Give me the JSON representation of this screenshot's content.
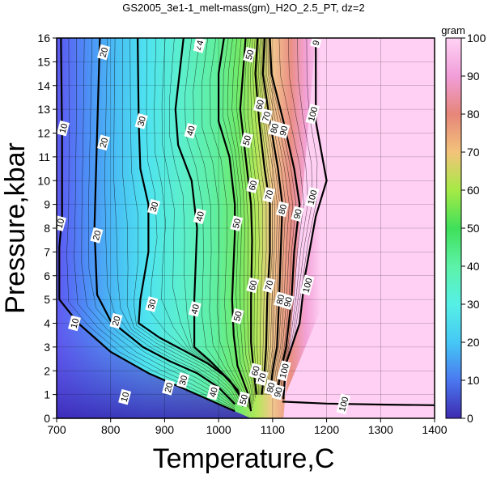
{
  "title": "GS2005_3e1-1_melt-mass(gm)_H2O_2.5_PT, dz=2",
  "chart_data": {
    "type": "heatmap",
    "title": "GS2005_3e1-1_melt-mass(gm)_H2O_2.5_PT, dz=2",
    "xlabel": "Temperature,C",
    "ylabel": "Pressure,kbar",
    "xlim": [
      700,
      1400
    ],
    "ylim": [
      0,
      16
    ],
    "xticks": [
      700,
      800,
      900,
      1000,
      1100,
      1200,
      1300,
      1400
    ],
    "yticks": [
      0,
      1,
      2,
      3,
      4,
      5,
      6,
      7,
      8,
      9,
      10,
      11,
      12,
      13,
      14,
      15,
      16
    ],
    "grid": true,
    "colorbar": {
      "label": "gram",
      "range": [
        0,
        100
      ],
      "ticks": [
        0,
        10,
        20,
        30,
        40,
        50,
        60,
        70,
        80,
        90,
        100
      ],
      "colors": [
        "#3d2bb0",
        "#4a78f0",
        "#45c8f5",
        "#56f0e6",
        "#5cf2a8",
        "#3fe05a",
        "#a6ea45",
        "#f3c37a",
        "#e6867a",
        "#f19ed9",
        "#ffd2f4"
      ]
    },
    "contours": [
      {
        "level": 10,
        "points": [
          [
            708,
            16
          ],
          [
            710,
            12
          ],
          [
            710,
            8.5
          ],
          [
            705,
            7.2
          ],
          [
            705,
            5.0
          ],
          [
            740,
            4.0
          ],
          [
            800,
            2.8
          ],
          [
            870,
            1.9
          ],
          [
            930,
            1.3
          ],
          [
            980,
            0.8
          ],
          [
            1030,
            0.3
          ]
        ]
      },
      {
        "level": 20,
        "points": [
          [
            780,
            16
          ],
          [
            775,
            12
          ],
          [
            770,
            8
          ],
          [
            775,
            5.2
          ],
          [
            800,
            4.1
          ],
          [
            860,
            3.0
          ],
          [
            910,
            2.4
          ],
          [
            960,
            1.9
          ],
          [
            1000,
            1.3
          ],
          [
            1030,
            0.6
          ]
        ]
      },
      {
        "level": 30,
        "points": [
          [
            850,
            16
          ],
          [
            852,
            12.5
          ],
          [
            855,
            10.5
          ],
          [
            870,
            9
          ],
          [
            870,
            7
          ],
          [
            855,
            5
          ],
          [
            852,
            4.0
          ],
          [
            890,
            3.4
          ],
          [
            940,
            2.8
          ],
          [
            980,
            2.3
          ],
          [
            1010,
            1.8
          ],
          [
            1035,
            1.2
          ],
          [
            1045,
            0.5
          ]
        ]
      },
      {
        "level": 40,
        "points": [
          [
            935,
            16
          ],
          [
            920,
            13
          ],
          [
            925,
            11.5
          ],
          [
            950,
            10
          ],
          [
            960,
            8
          ],
          [
            955,
            5
          ],
          [
            955,
            3.0
          ],
          [
            985,
            2.4
          ],
          [
            1020,
            1.6
          ],
          [
            1050,
            0.6
          ]
        ]
      },
      {
        "level": 50,
        "points": [
          [
            1010,
            16
          ],
          [
            1000,
            14.5
          ],
          [
            1000,
            12.5
          ],
          [
            1020,
            11
          ],
          [
            1030,
            9
          ],
          [
            1030,
            7.8
          ],
          [
            1025,
            5
          ],
          [
            1028,
            3.5
          ],
          [
            1035,
            2.2
          ],
          [
            1055,
            1.0
          ],
          [
            1060,
            0.3
          ]
        ]
      },
      {
        "level": 60,
        "points": [
          [
            1050,
            16
          ],
          [
            1045,
            14.5
          ],
          [
            1040,
            13
          ],
          [
            1050,
            11
          ],
          [
            1060,
            9
          ],
          [
            1062,
            7.5
          ],
          [
            1060,
            5
          ],
          [
            1060,
            3.2
          ],
          [
            1065,
            2.0
          ],
          [
            1070,
            1.0
          ]
        ]
      },
      {
        "level": 70,
        "points": [
          [
            1072,
            16
          ],
          [
            1068,
            14.5
          ],
          [
            1075,
            12.5
          ],
          [
            1085,
            10.5
          ],
          [
            1095,
            9
          ],
          [
            1095,
            7
          ],
          [
            1090,
            5
          ],
          [
            1088,
            3.0
          ],
          [
            1085,
            2.0
          ],
          [
            1080,
            1.0
          ]
        ]
      },
      {
        "level": 80,
        "points": [
          [
            1085,
            16
          ],
          [
            1082,
            14.5
          ],
          [
            1095,
            12.5
          ],
          [
            1110,
            10.5
          ],
          [
            1118,
            9
          ],
          [
            1115,
            7
          ],
          [
            1112,
            5
          ],
          [
            1108,
            3.0
          ],
          [
            1100,
            2.0
          ],
          [
            1095,
            1.0
          ]
        ]
      },
      {
        "level": 90,
        "points": [
          [
            1095,
            16
          ],
          [
            1098,
            14.5
          ],
          [
            1120,
            12.5
          ],
          [
            1140,
            10.5
          ],
          [
            1150,
            9
          ],
          [
            1140,
            7
          ],
          [
            1135,
            5
          ],
          [
            1125,
            3.0
          ],
          [
            1115,
            2.0
          ],
          [
            1108,
            1.0
          ]
        ]
      },
      {
        "level": 100,
        "points": [
          [
            1180,
            16
          ],
          [
            1180,
            14
          ],
          [
            1180,
            12.5
          ],
          [
            1200,
            10
          ],
          [
            1180,
            8.5
          ],
          [
            1160,
            6
          ],
          [
            1150,
            4.0
          ],
          [
            1125,
            2.3
          ],
          [
            1120,
            0.8
          ]
        ]
      },
      {
        "level": 100,
        "points": [
          [
            1118,
            0.7
          ],
          [
            1200,
            0.62
          ],
          [
            1300,
            0.58
          ],
          [
            1400,
            0.55
          ]
        ]
      }
    ],
    "contour_labels": [
      {
        "text": "10",
        "x": 712,
        "y": 12.2
      },
      {
        "text": "10",
        "x": 706,
        "y": 8.2
      },
      {
        "text": "10",
        "x": 733,
        "y": 4.0
      },
      {
        "text": "10",
        "x": 826,
        "y": 0.9
      },
      {
        "text": "20",
        "x": 787,
        "y": 15.4
      },
      {
        "text": "20",
        "x": 787,
        "y": 11.6
      },
      {
        "text": "20",
        "x": 774,
        "y": 7.7
      },
      {
        "text": "20",
        "x": 810,
        "y": 4.1
      },
      {
        "text": "20",
        "x": 907,
        "y": 1.3
      },
      {
        "text": "30",
        "x": 857,
        "y": 12.5
      },
      {
        "text": "30",
        "x": 880,
        "y": 8.9
      },
      {
        "text": "30",
        "x": 876,
        "y": 4.8
      },
      {
        "text": "30",
        "x": 934,
        "y": 1.6
      },
      {
        "text": "40",
        "x": 965,
        "y": 15.7
      },
      {
        "text": "40",
        "x": 948,
        "y": 12.1
      },
      {
        "text": "40",
        "x": 965,
        "y": 8.5
      },
      {
        "text": "40",
        "x": 956,
        "y": 4.6
      },
      {
        "text": "40",
        "x": 990,
        "y": 1.1
      },
      {
        "text": "50",
        "x": 1057,
        "y": 15.3
      },
      {
        "text": "50",
        "x": 1052,
        "y": 11.7
      },
      {
        "text": "50",
        "x": 1033,
        "y": 8.2
      },
      {
        "text": "50",
        "x": 1035,
        "y": 4.3
      },
      {
        "text": "50",
        "x": 1046,
        "y": 0.8
      },
      {
        "text": "60",
        "x": 1076,
        "y": 13.2
      },
      {
        "text": "60",
        "x": 1063,
        "y": 9.8
      },
      {
        "text": "60",
        "x": 1063,
        "y": 5.6
      },
      {
        "text": "60",
        "x": 1068,
        "y": 2.0
      },
      {
        "text": "70",
        "x": 1088,
        "y": 12.7
      },
      {
        "text": "70",
        "x": 1093,
        "y": 9.4
      },
      {
        "text": "70",
        "x": 1093,
        "y": 5.6
      },
      {
        "text": "70",
        "x": 1080,
        "y": 1.7
      },
      {
        "text": "80",
        "x": 1103,
        "y": 12.2
      },
      {
        "text": "80",
        "x": 1118,
        "y": 8.8
      },
      {
        "text": "80",
        "x": 1114,
        "y": 5.0
      },
      {
        "text": "80",
        "x": 1096,
        "y": 1.3
      },
      {
        "text": "90",
        "x": 1120,
        "y": 12.1
      },
      {
        "text": "90",
        "x": 1146,
        "y": 8.6
      },
      {
        "text": "90",
        "x": 1128,
        "y": 4.9
      },
      {
        "text": "90",
        "x": 1110,
        "y": 1.1
      },
      {
        "text": "100",
        "x": 1174,
        "y": 12.8
      },
      {
        "text": "100",
        "x": 1173,
        "y": 9.3
      },
      {
        "text": "100",
        "x": 1164,
        "y": 5.6
      },
      {
        "text": "100",
        "x": 1121,
        "y": 2.0
      },
      {
        "text": "100",
        "x": 1231,
        "y": 0.6
      },
      {
        "text": "9",
        "x": 1180,
        "y": 15.8
      },
      {
        "text": "4",
        "x": 965,
        "y": 15.8
      }
    ]
  }
}
